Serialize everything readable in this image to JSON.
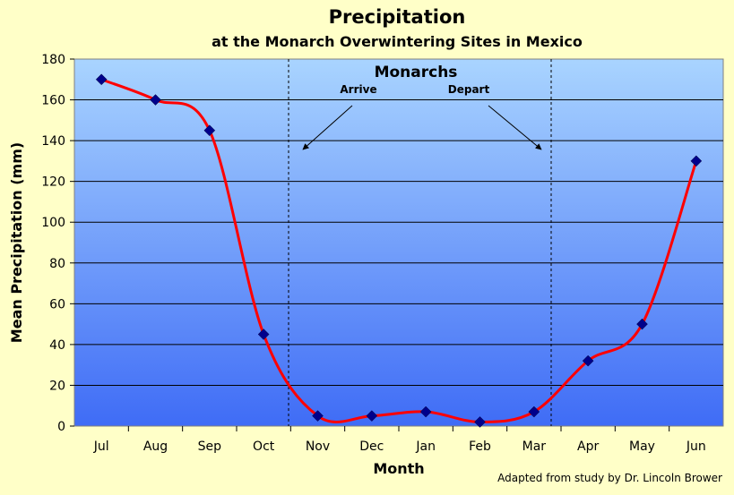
{
  "chart_data": {
    "type": "line",
    "title": "Precipitation",
    "subtitle": "at the Monarch Overwintering Sites in Mexico",
    "xlabel": "Month",
    "ylabel": "Mean Precipitation (mm)",
    "categories": [
      "Jul",
      "Aug",
      "Sep",
      "Oct",
      "Nov",
      "Dec",
      "Jan",
      "Feb",
      "Mar",
      "Apr",
      "May",
      "Jun"
    ],
    "values": [
      170,
      160,
      145,
      45,
      5,
      5,
      7,
      2,
      7,
      32,
      50,
      130
    ],
    "ylim": [
      0,
      180
    ],
    "yticks": [
      0,
      20,
      40,
      60,
      80,
      100,
      120,
      140,
      160,
      180
    ],
    "grid": true,
    "line_color": "#ff0000",
    "marker_color": "#00008b",
    "annotations": {
      "heading": "Monarchs",
      "arrive": "Arrive",
      "depart": "Depart"
    },
    "credit": "Adapted from study by Dr. Lincoln Brower"
  },
  "colors": {
    "background": "#ffffc8",
    "plot_top": "#a9d4ff",
    "plot_bottom": "#3f6cf6"
  }
}
